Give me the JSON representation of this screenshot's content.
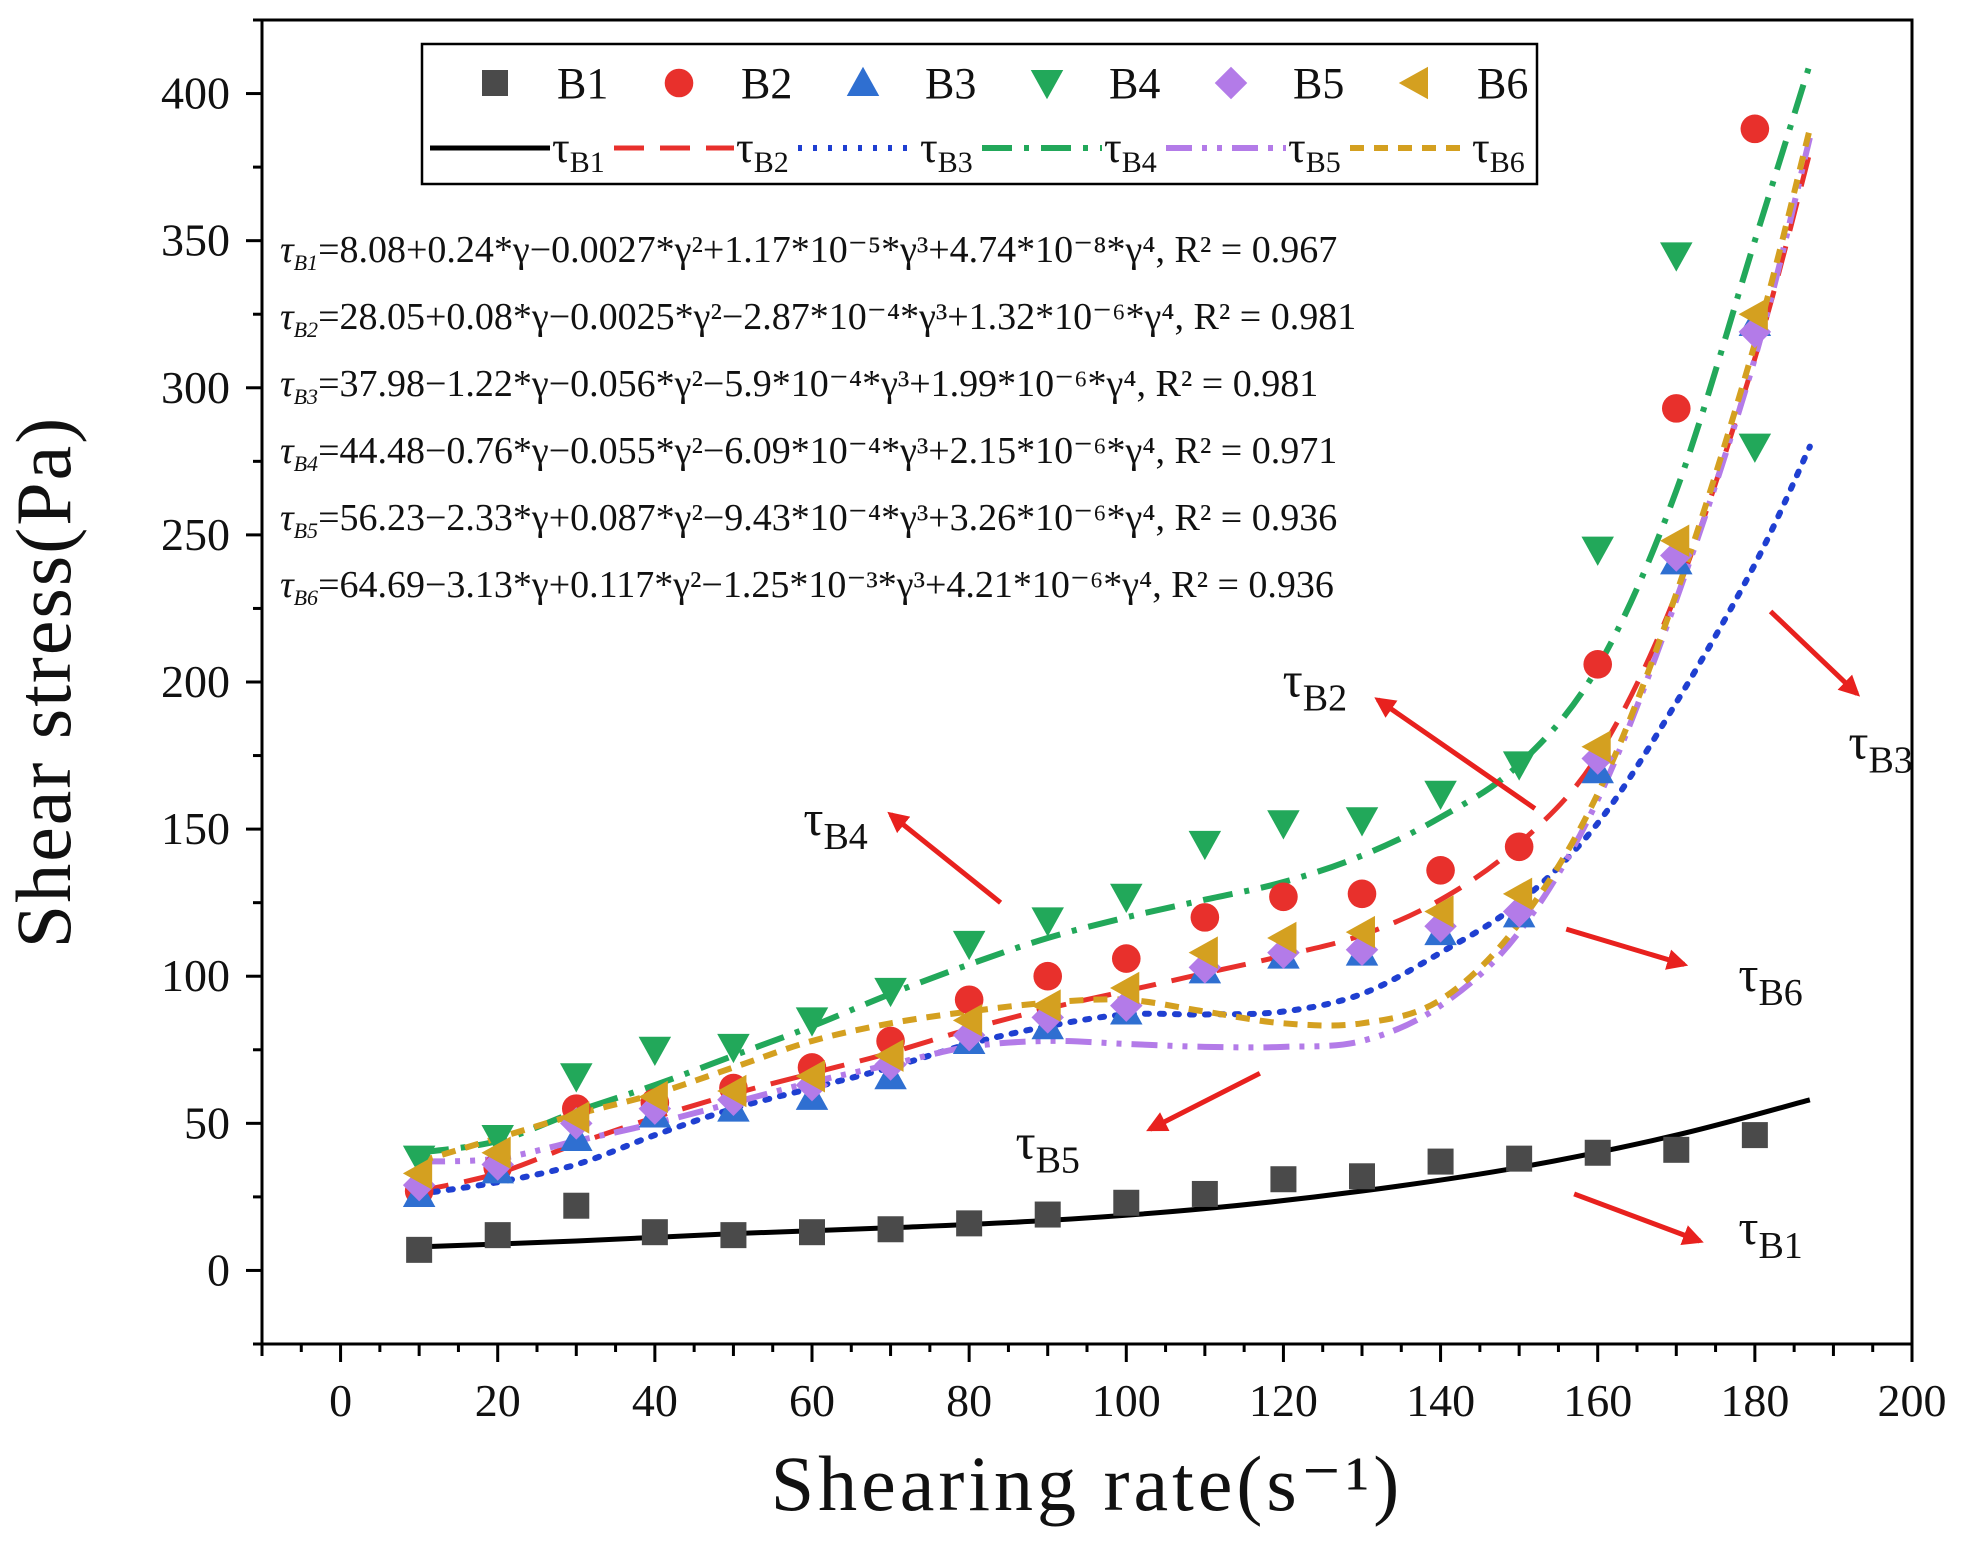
{
  "chart_data": {
    "type": "scatter",
    "title": "",
    "xlabel": "Shearing rate(s⁻¹)",
    "ylabel": "Shear stress(Pa)",
    "xlim": [
      -10,
      200
    ],
    "ylim": [
      -25,
      425
    ],
    "x_ticks": [
      0,
      20,
      40,
      60,
      80,
      100,
      120,
      140,
      160,
      180,
      200
    ],
    "y_ticks": [
      0,
      50,
      100,
      150,
      200,
      250,
      300,
      350,
      400
    ],
    "grid": false,
    "legend_position": "top",
    "x": [
      10,
      20,
      30,
      40,
      50,
      60,
      70,
      80,
      90,
      100,
      110,
      120,
      130,
      140,
      150,
      160,
      170,
      180
    ],
    "series": [
      {
        "name": "B1",
        "marker": "square",
        "color": "#4a4a4a",
        "values": [
          7,
          12,
          22,
          13,
          12,
          13,
          14,
          16,
          19,
          23,
          26,
          31,
          32,
          37,
          38,
          40,
          41,
          46
        ]
      },
      {
        "name": "B2",
        "marker": "circle",
        "color": "#e8302c",
        "values": [
          27,
          35,
          55,
          57,
          62,
          69,
          78,
          92,
          100,
          106,
          120,
          127,
          128,
          136,
          144,
          206,
          293,
          388
        ]
      },
      {
        "name": "B3",
        "marker": "triangle-up",
        "color": "#2f6fd1",
        "values": [
          26,
          34,
          45,
          53,
          55,
          59,
          66,
          78,
          83,
          88,
          102,
          107,
          108,
          115,
          121,
          170,
          241,
          322
        ]
      },
      {
        "name": "B4",
        "marker": "triangle-down",
        "color": "#22a85a",
        "values": [
          38,
          45,
          66,
          75,
          76,
          85,
          95,
          111,
          119,
          127,
          145,
          152,
          153,
          162,
          172,
          245,
          345,
          280
        ]
      },
      {
        "name": "B5",
        "marker": "diamond",
        "color": "#b37be8",
        "values": [
          29,
          36,
          50,
          55,
          58,
          63,
          70,
          80,
          86,
          90,
          103,
          108,
          109,
          117,
          122,
          174,
          243,
          319
        ]
      },
      {
        "name": "B6",
        "marker": "triangle-left",
        "color": "#d4a020",
        "values": [
          33,
          40,
          52,
          59,
          61,
          66,
          73,
          85,
          90,
          96,
          108,
          113,
          115,
          122,
          128,
          178,
          248,
          325
        ]
      }
    ],
    "fits": [
      {
        "name": "τB1",
        "style": "solid",
        "color": "#000000",
        "width": 5,
        "x": [
          10,
          30,
          50,
          70,
          90,
          110,
          130,
          150,
          170,
          187
        ],
        "y": [
          8,
          10,
          12.5,
          14.5,
          17,
          21,
          27,
          35,
          46,
          58
        ]
      },
      {
        "name": "τB2",
        "style": "dash",
        "color": "#e8302c",
        "width": 5,
        "x": [
          10,
          20,
          30,
          40,
          50,
          60,
          70,
          80,
          90,
          100,
          110,
          120,
          130,
          140,
          150,
          160,
          170,
          180,
          187
        ],
        "y": [
          27,
          33,
          43,
          52,
          60,
          67,
          74,
          82,
          89,
          95,
          101,
          107,
          114,
          126,
          145,
          175,
          230,
          310,
          380
        ]
      },
      {
        "name": "τB3",
        "style": "dot",
        "color": "#1f3fd1",
        "width": 6,
        "x": [
          10,
          20,
          30,
          40,
          50,
          60,
          70,
          80,
          90,
          100,
          110,
          120,
          130,
          140,
          150,
          160,
          170,
          180,
          187
        ],
        "y": [
          26,
          30,
          36,
          46,
          55,
          62,
          69,
          77,
          83,
          87,
          87,
          88,
          94,
          108,
          125,
          152,
          193,
          240,
          280
        ]
      },
      {
        "name": "τB4",
        "style": "dashdot",
        "color": "#22a85a",
        "width": 6,
        "x": [
          10,
          20,
          30,
          40,
          50,
          60,
          70,
          80,
          90,
          100,
          110,
          120,
          130,
          140,
          150,
          160,
          170,
          180,
          187
        ],
        "y": [
          40,
          44,
          54,
          63,
          73,
          83,
          94,
          104,
          113,
          120,
          126,
          132,
          141,
          154,
          172,
          205,
          265,
          350,
          410
        ]
      },
      {
        "name": "τB5",
        "style": "dashdotdot",
        "color": "#b37be8",
        "width": 6,
        "x": [
          10,
          20,
          30,
          40,
          50,
          60,
          70,
          80,
          90,
          100,
          110,
          120,
          130,
          140,
          150,
          160,
          170,
          180,
          187
        ],
        "y": [
          37,
          38,
          44,
          50,
          57,
          64,
          70,
          76,
          78,
          77,
          76,
          76,
          78,
          90,
          115,
          160,
          228,
          310,
          385
        ]
      },
      {
        "name": "τB6",
        "style": "shortdash",
        "color": "#d4a020",
        "width": 6,
        "x": [
          10,
          20,
          30,
          40,
          50,
          60,
          70,
          80,
          90,
          100,
          110,
          120,
          130,
          140,
          150,
          160,
          170,
          180,
          187
        ],
        "y": [
          37,
          45,
          53,
          60,
          69,
          78,
          84,
          88,
          91,
          92,
          88,
          84,
          84,
          92,
          118,
          162,
          230,
          315,
          388
        ]
      }
    ],
    "equations": [
      {
        "lhs": "τB1",
        "rhs": "=8.08+0.24*γ−0.0027*γ²+1.17*10⁻⁵*γ³+4.74*10⁻⁸*γ⁴, R² = 0.967"
      },
      {
        "lhs": "τB2",
        "rhs": "=28.05+0.08*γ−0.0025*γ²−2.87*10⁻⁴*γ³+1.32*10⁻⁶*γ⁴, R² = 0.981"
      },
      {
        "lhs": "τB3",
        "rhs": "=37.98−1.22*γ−0.056*γ²−5.9*10⁻⁴*γ³+1.99*10⁻⁶*γ⁴, R² = 0.981"
      },
      {
        "lhs": "τB4",
        "rhs": "=44.48−0.76*γ−0.055*γ²−6.09*10⁻⁴*γ³+2.15*10⁻⁶*γ⁴, R² = 0.971"
      },
      {
        "lhs": "τB5",
        "rhs": "=56.23−2.33*γ+0.087*γ²−9.43*10⁻⁴*γ³+3.26*10⁻⁶*γ⁴, R² = 0.936"
      },
      {
        "lhs": "τB6",
        "rhs": "=64.69−3.13*γ+0.117*γ²−1.25*10⁻³*γ³+4.21*10⁻⁶*γ⁴, R² = 0.936"
      }
    ],
    "annotations": [
      {
        "text": "τB1",
        "arrow_color": "#e8211e",
        "text_at": [
          182,
          9
        ],
        "tail": [
          157,
          26
        ],
        "head": [
          173,
          10
        ]
      },
      {
        "text": "τB2",
        "arrow_color": "#e8211e",
        "text_at": [
          124,
          195
        ],
        "tail": [
          152,
          157
        ],
        "head": [
          132,
          194
        ]
      },
      {
        "text": "τB3",
        "arrow_color": "#e8211e",
        "text_at": [
          196,
          174
        ],
        "tail": [
          182,
          224
        ],
        "head": [
          193,
          196
        ]
      },
      {
        "text": "τB4",
        "arrow_color": "#e8211e",
        "text_at": [
          63,
          148
        ],
        "tail": [
          84,
          125
        ],
        "head": [
          70,
          155
        ]
      },
      {
        "text": "τB5",
        "arrow_color": "#e8211e",
        "text_at": [
          90,
          38
        ],
        "tail": [
          117,
          67
        ],
        "head": [
          103,
          48
        ]
      },
      {
        "text": "τB6",
        "arrow_color": "#e8211e",
        "text_at": [
          182,
          95
        ],
        "tail": [
          156,
          116
        ],
        "head": [
          171,
          104
        ]
      }
    ]
  }
}
